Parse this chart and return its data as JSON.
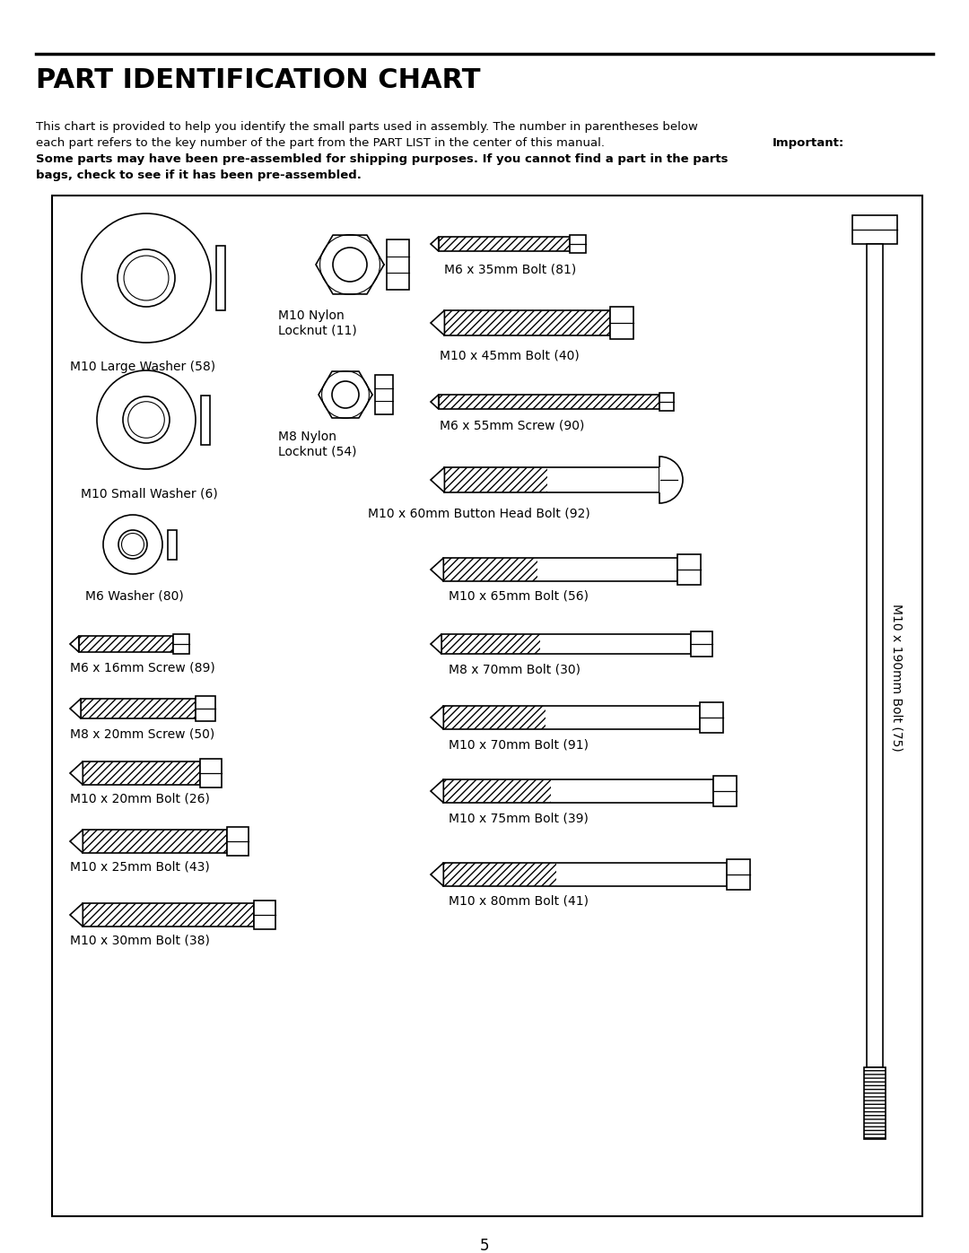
{
  "title": "PART IDENTIFICATION CHART",
  "desc1": "This chart is provided to help you identify the small parts used in assembly. The number in parentheses below",
  "desc2": "each part refers to the key number of the part from the PART LIST in the center of this manual. ",
  "desc2_bold": "Important:",
  "desc3": "Some parts may have been pre-assembled for shipping purposes. If you cannot find a part in the parts",
  "desc4": "bags, check to see if it has been pre-assembled.",
  "page_number": "5",
  "bg": "#ffffff"
}
